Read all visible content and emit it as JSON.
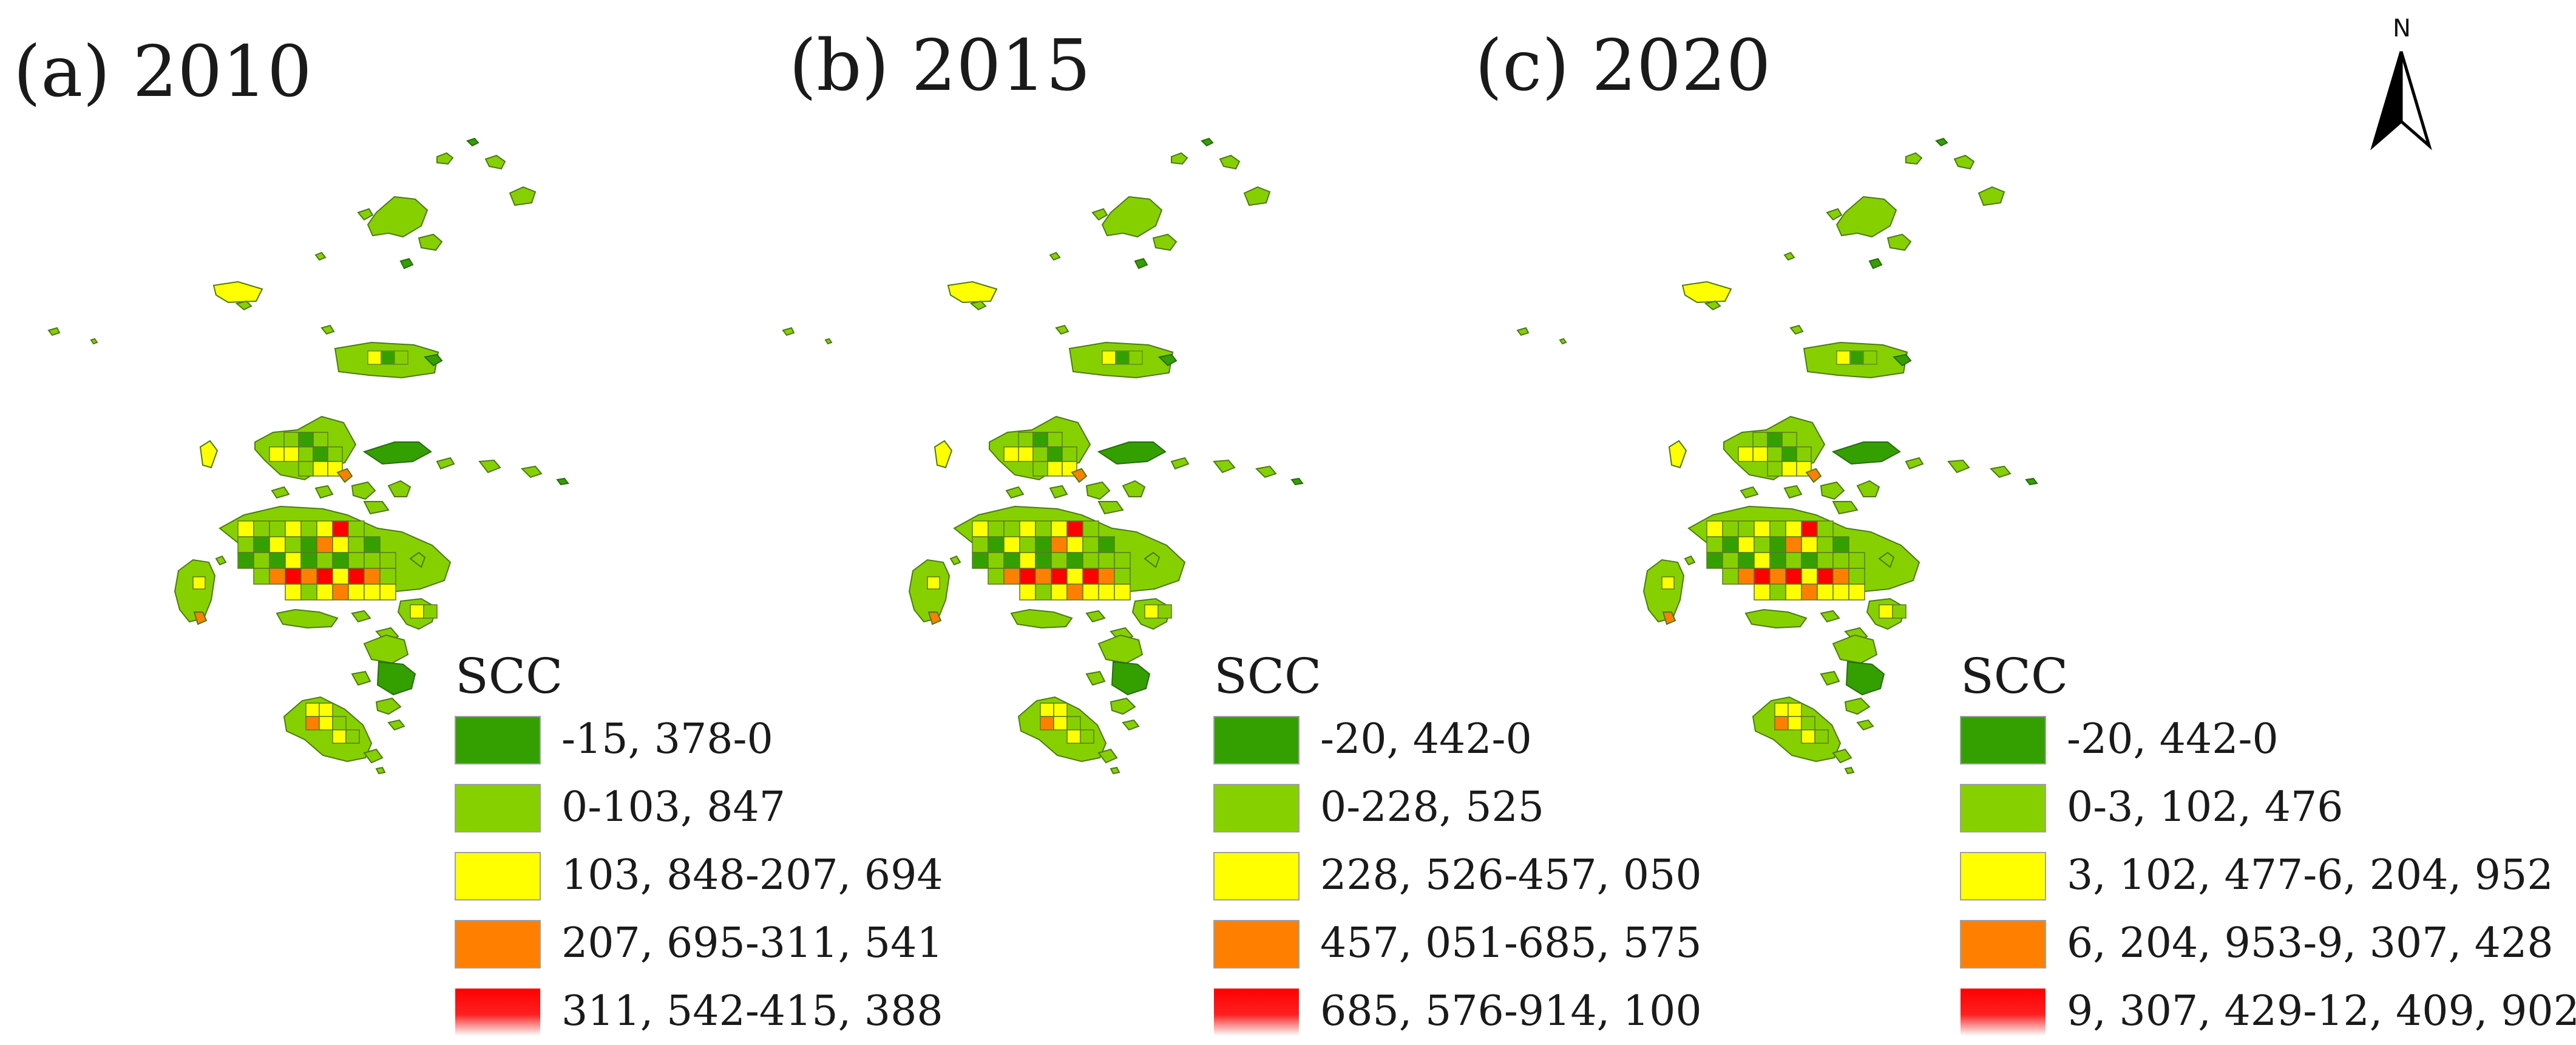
{
  "colors": {
    "class1": "#33a000",
    "class2": "#86d000",
    "class3": "#ffff00",
    "class4": "#ff8000",
    "class5": "#ff0000",
    "water": "#ffffff",
    "outline": "#5a7a20"
  },
  "north_arrow": {
    "label": "N",
    "icon": "north-arrow-icon"
  },
  "panels": [
    {
      "id": "a",
      "title": "(a) 2010",
      "legend": {
        "title": "SCC",
        "classes": [
          "-15, 378-0",
          "0-103, 847",
          "103, 848-207, 694",
          "207, 695-311, 541",
          "311, 542-415, 388"
        ]
      }
    },
    {
      "id": "b",
      "title": "(b) 2015",
      "legend": {
        "title": "SCC",
        "classes": [
          "-20, 442-0",
          "0-228, 525",
          "228, 526-457, 050",
          "457, 051-685, 575",
          "685, 576-914, 100"
        ]
      }
    },
    {
      "id": "c",
      "title": "(c) 2020",
      "legend": {
        "title": "SCC",
        "classes": [
          "-20, 442-0",
          "0-3, 102, 476",
          "3, 102, 477-6, 204, 952",
          "6, 204, 953-9, 307, 428",
          "9, 307, 429-12, 409, 902"
        ]
      }
    }
  ]
}
